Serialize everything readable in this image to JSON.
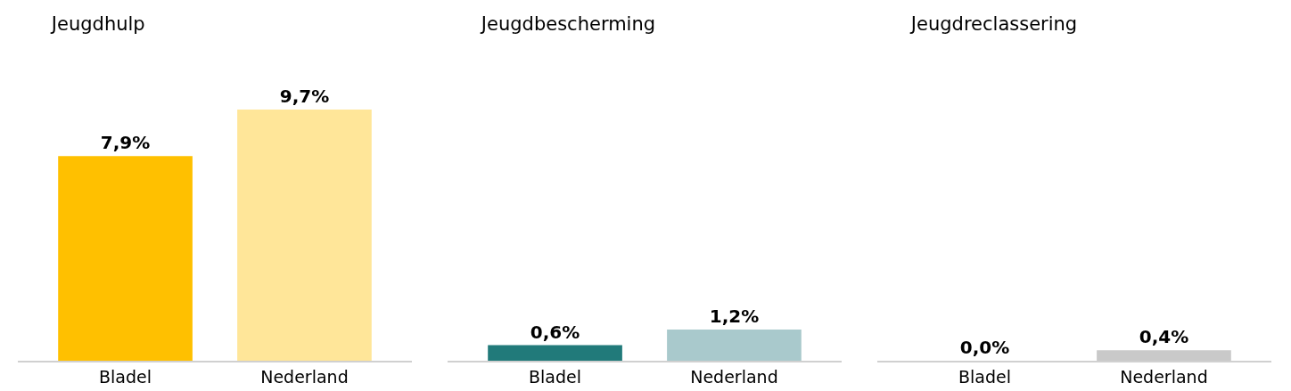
{
  "chart_data": [
    {
      "type": "bar",
      "title": "Jeugdhulp",
      "categories": [
        "Bladel",
        "Nederland"
      ],
      "values": [
        7.9,
        9.7
      ],
      "colors": [
        "#ffc000",
        "#ffe699"
      ],
      "value_labels": [
        "7,9%",
        "9,7%"
      ],
      "tick_labels": "x",
      "grid": false,
      "legend": false
    },
    {
      "type": "bar",
      "title": "Jeugdbescherming",
      "categories": [
        "Bladel",
        "Nederland"
      ],
      "values": [
        0.6,
        1.2
      ],
      "colors": [
        "#217a7a",
        "#a9c9cc"
      ],
      "value_labels": [
        "0,6%",
        "1,2%"
      ],
      "tick_labels": "x",
      "grid": false,
      "legend": false
    },
    {
      "type": "bar",
      "title": "Jeugdreclassering",
      "categories": [
        "Bladel",
        "Nederland"
      ],
      "values": [
        0.0,
        0.4
      ],
      "colors": [
        "#808080",
        "#c9c9c9"
      ],
      "value_labels": [
        "0,0%",
        "0,4%"
      ],
      "tick_labels": "x",
      "grid": false,
      "legend": false
    }
  ]
}
